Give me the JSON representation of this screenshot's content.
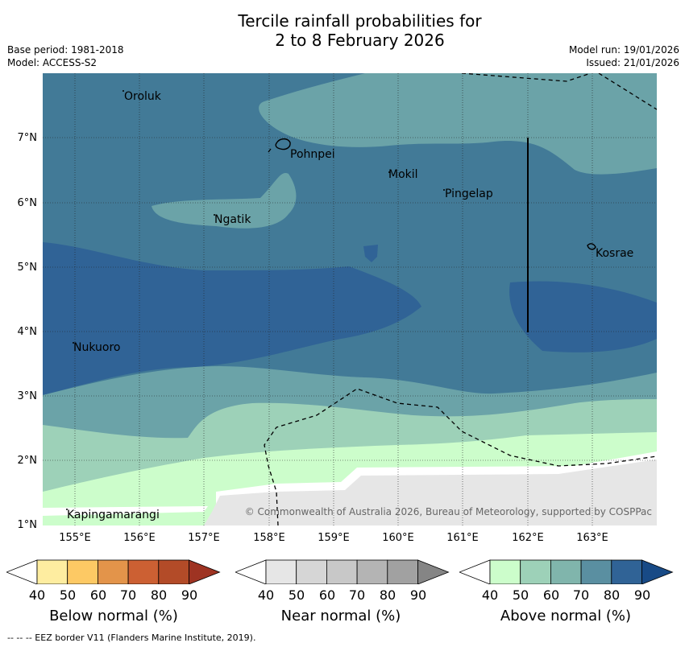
{
  "title": {
    "line1": "Tercile rainfall probabilities for",
    "line2": "2 to 8 February 2026"
  },
  "meta": {
    "base_period": "Base period: 1981-2018",
    "model": "Model: ACCESS-S2",
    "model_run": "Model run: 19/01/2026",
    "issued": "Issued: 21/01/2026"
  },
  "map": {
    "places": [
      {
        "name": "Oroluk"
      },
      {
        "name": "Pohnpei"
      },
      {
        "name": "Mokil"
      },
      {
        "name": "Pingelap"
      },
      {
        "name": "Ngatik"
      },
      {
        "name": "Kosrae"
      },
      {
        "name": "Nukuoro"
      },
      {
        "name": "Kapingamarangi"
      }
    ],
    "lat_labels": [
      "7°N",
      "6°N",
      "5°N",
      "4°N",
      "3°N",
      "2°N",
      "1°N"
    ],
    "lon_labels": [
      "155°E",
      "156°E",
      "157°E",
      "158°E",
      "159°E",
      "160°E",
      "161°E",
      "162°E",
      "163°E"
    ],
    "copyright": "© Commonwealth of Australia 2026, Bureau of Meteorology, supported by COSPPac"
  },
  "legends": [
    {
      "title": "Below normal (%)",
      "ticks": [
        "40",
        "50",
        "60",
        "70",
        "80",
        "90"
      ],
      "colors": [
        "#ffffff",
        "#feeda0",
        "#fdc964",
        "#e3944a",
        "#cc6033",
        "#b34b28",
        "#9e3322"
      ]
    },
    {
      "title": "Near normal (%)",
      "ticks": [
        "40",
        "50",
        "60",
        "70",
        "80",
        "90"
      ],
      "colors": [
        "#ffffff",
        "#e6e6e6",
        "#d6d6d6",
        "#c8c8c8",
        "#b4b4b4",
        "#a1a1a1",
        "#858585"
      ]
    },
    {
      "title": "Above normal (%)",
      "ticks": [
        "40",
        "50",
        "60",
        "70",
        "80",
        "90"
      ],
      "colors": [
        "#ffffff",
        "#ccfdcb",
        "#9dd1b8",
        "#80b5ac",
        "#5a8fa1",
        "#306396",
        "#184a86"
      ]
    }
  ],
  "footnote": "--  --  -- EEZ border V11 (Flanders Marine Institute, 2019)."
}
